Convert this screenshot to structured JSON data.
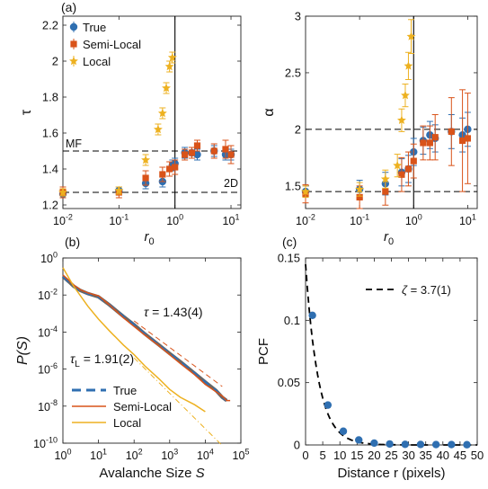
{
  "colors": {
    "true": "#2f6fb1",
    "semi": "#d95319",
    "local": "#edb120",
    "ref_line": "#000000"
  },
  "chart_data": [
    {
      "panel": "(a)",
      "type": "scatter",
      "xscale": "log",
      "xlim": [
        0.01,
        15
      ],
      "ylim": [
        1.18,
        2.25
      ],
      "xlabel": "r",
      "xlabel_sub": "0",
      "ylabel": "τ",
      "xticks": [
        0.01,
        0.1,
        1,
        10
      ],
      "xtick_labels": [
        [
          "10",
          "-2"
        ],
        [
          "10",
          "-1"
        ],
        [
          "10",
          "0"
        ],
        [
          "10",
          "1"
        ]
      ],
      "yticks": [
        1.2,
        1.4,
        1.6,
        1.8,
        2.0,
        2.2
      ],
      "ytick_labels": [
        "1.2",
        "1.4",
        "1.6",
        "1.8",
        "2",
        "2.2"
      ],
      "vline": 1,
      "hlines": [
        {
          "y": 1.5,
          "label": "MF"
        },
        {
          "y": 1.27,
          "label": "2D"
        }
      ],
      "legend": [
        "True",
        "Semi-Local",
        "Local"
      ],
      "series": [
        {
          "name": "True",
          "marker": "circle",
          "x": [
            0.01,
            0.1,
            0.3,
            0.6,
            0.9,
            1.0,
            1.5,
            2.0,
            2.5,
            5,
            8,
            10
          ],
          "y": [
            1.26,
            1.28,
            1.32,
            1.33,
            1.42,
            1.43,
            1.49,
            1.49,
            1.48,
            1.5,
            1.48,
            1.48
          ],
          "err": [
            0.02,
            0.02,
            0.03,
            0.03,
            0.03,
            0.03,
            0.03,
            0.03,
            0.03,
            0.03,
            0.03,
            0.03
          ]
        },
        {
          "name": "Semi-Local",
          "marker": "square",
          "x": [
            0.01,
            0.1,
            0.3,
            0.6,
            0.8,
            1.0,
            1.5,
            2.0,
            2.5,
            5,
            8,
            10
          ],
          "y": [
            1.27,
            1.27,
            1.35,
            1.37,
            1.4,
            1.41,
            1.48,
            1.49,
            1.53,
            1.5,
            1.51,
            1.48
          ],
          "err": [
            0.03,
            0.03,
            0.04,
            0.04,
            0.04,
            0.04,
            0.03,
            0.03,
            0.03,
            0.04,
            0.05,
            0.05
          ]
        },
        {
          "name": "Local",
          "marker": "star",
          "x": [
            0.01,
            0.1,
            0.3,
            0.5,
            0.6,
            0.7,
            0.8,
            0.9
          ],
          "y": [
            1.27,
            1.28,
            1.45,
            1.62,
            1.71,
            1.85,
            1.97,
            2.02
          ],
          "err": [
            0.02,
            0.02,
            0.03,
            0.03,
            0.03,
            0.03,
            0.03,
            0.03
          ]
        }
      ]
    },
    {
      "panel": "",
      "type": "scatter",
      "xscale": "log",
      "xlim": [
        0.01,
        15
      ],
      "ylim": [
        1.3,
        3.0
      ],
      "xlabel": "r",
      "xlabel_sub": "0",
      "ylabel": "α",
      "xticks": [
        0.01,
        0.1,
        1,
        10
      ],
      "xtick_labels": [
        [
          "10",
          "-2"
        ],
        [
          "10",
          "-1"
        ],
        [
          "10",
          "0"
        ],
        [
          "10",
          "1"
        ]
      ],
      "yticks": [
        1.5,
        2.0,
        2.5,
        3.0
      ],
      "ytick_labels": [
        "1.5",
        "2",
        "2.5",
        "3"
      ],
      "vline": 1,
      "hlines": [
        {
          "y": 2.0,
          "label": ""
        },
        {
          "y": 1.45,
          "label": ""
        }
      ],
      "series": [
        {
          "name": "True",
          "marker": "circle",
          "x": [
            0.01,
            0.1,
            0.3,
            0.6,
            0.8,
            1.0,
            1.5,
            2.0,
            2.5,
            5,
            8,
            10
          ],
          "y": [
            1.45,
            1.47,
            1.52,
            1.62,
            1.65,
            1.8,
            1.9,
            1.95,
            1.92,
            1.98,
            1.95,
            2.0
          ],
          "err": [
            0.05,
            0.08,
            0.1,
            0.12,
            0.12,
            0.12,
            0.12,
            0.12,
            0.12,
            0.15,
            0.15,
            0.15
          ]
        },
        {
          "name": "Semi-Local",
          "marker": "square",
          "x": [
            0.01,
            0.1,
            0.3,
            0.6,
            0.8,
            1.0,
            1.5,
            2.0,
            2.5,
            5,
            8,
            10
          ],
          "y": [
            1.43,
            1.4,
            1.45,
            1.6,
            1.65,
            1.72,
            1.88,
            1.88,
            1.93,
            1.98,
            1.9,
            1.92
          ],
          "err": [
            0.08,
            0.1,
            0.12,
            0.15,
            0.15,
            0.15,
            0.15,
            0.15,
            0.2,
            0.3,
            0.45,
            0.4
          ]
        },
        {
          "name": "Local",
          "marker": "star",
          "x": [
            0.01,
            0.1,
            0.3,
            0.5,
            0.6,
            0.7,
            0.8,
            0.9
          ],
          "y": [
            1.45,
            1.47,
            1.56,
            1.68,
            2.08,
            2.3,
            2.56,
            2.82
          ],
          "err": [
            0.05,
            0.06,
            0.08,
            0.1,
            0.1,
            0.1,
            0.12,
            0.15
          ]
        }
      ]
    },
    {
      "panel": "(b)",
      "type": "line",
      "xscale": "log",
      "yscale": "log",
      "xlim": [
        1,
        100000
      ],
      "ylim": [
        1e-10,
        1
      ],
      "xlabel": "Avalanche Size",
      "xlabel_var": "S",
      "ylabel": "P(S)",
      "xticks": [
        1,
        10,
        100,
        1000,
        10000,
        100000
      ],
      "xtick_labels": [
        [
          "10",
          "0"
        ],
        [
          "10",
          "1"
        ],
        [
          "10",
          "2"
        ],
        [
          "10",
          "3"
        ],
        [
          "10",
          "4"
        ],
        [
          "10",
          "5"
        ]
      ],
      "yticks": [
        1,
        0.01,
        0.0001,
        1e-06,
        1e-08,
        1e-10
      ],
      "ytick_labels": [
        [
          "10",
          "0"
        ],
        [
          "10",
          "-2"
        ],
        [
          "10",
          "-4"
        ],
        [
          "10",
          "-6"
        ],
        [
          "10",
          "-8"
        ],
        [
          "10",
          "-10"
        ]
      ],
      "annotations": [
        {
          "text": "τ = 1.43(4)",
          "symbol": "τ",
          "value": " = 1.43(4)"
        },
        {
          "text": "τL = 1.91(2)",
          "symbol": "τ",
          "sub": "L",
          "value": " = 1.91(2)"
        }
      ],
      "legend": [
        "True",
        "Semi-Local",
        "Local"
      ],
      "series": [
        {
          "name": "True",
          "style": "dashed",
          "x": [
            1,
            1.5,
            2,
            3,
            5,
            10,
            20,
            50,
            100,
            200,
            500,
            1000,
            2000,
            5000,
            10000,
            20000,
            30000,
            40000
          ],
          "y": [
            0.1,
            0.05,
            0.03,
            0.018,
            0.012,
            0.008,
            0.003,
            0.0007,
            0.00025,
            8e-05,
            2e-05,
            7e-06,
            2.5e-06,
            6e-07,
            2e-07,
            7e-08,
            3e-08,
            2e-08
          ]
        },
        {
          "name": "Semi-Local",
          "style": "solid",
          "x": [
            1,
            1.5,
            2,
            3,
            5,
            10,
            20,
            50,
            100,
            200,
            500,
            1000,
            2000,
            5000,
            10000,
            20000,
            30000,
            40000,
            50000
          ],
          "y": [
            0.12,
            0.06,
            0.035,
            0.02,
            0.013,
            0.009,
            0.003,
            0.0006,
            0.0002,
            7e-05,
            1.8e-05,
            6e-06,
            2e-06,
            5e-07,
            1.5e-07,
            6e-08,
            3.5e-08,
            2e-08,
            2e-08
          ]
        },
        {
          "name": "Local",
          "style": "solid",
          "x": [
            1,
            2,
            5,
            10,
            20,
            50,
            100,
            200,
            500,
            1000,
            2000,
            5000,
            10000
          ],
          "y": [
            0.3,
            0.03,
            0.0025,
            0.0005,
            0.00012,
            2e-05,
            6e-06,
            1.5e-06,
            3e-07,
            8e-08,
            3e-08,
            1.2e-08,
            5e-09
          ]
        }
      ],
      "fit_lines": [
        {
          "color": "semi",
          "slope": -1.43,
          "x": [
            100,
            30000
          ],
          "y0": 0.0004
        },
        {
          "color": "local",
          "slope": -1.91,
          "x": [
            100,
            30000
          ],
          "y0": 4e-06
        }
      ]
    },
    {
      "panel": "(c)",
      "type": "scatter",
      "xlim": [
        0,
        50
      ],
      "ylim": [
        0,
        0.15
      ],
      "xlabel": "Distance r (pixels)",
      "ylabel": "PCF",
      "xticks": [
        0,
        5,
        10,
        15,
        20,
        25,
        30,
        35,
        40,
        45,
        50
      ],
      "xtick_labels": [
        "0",
        "5",
        "10",
        "15",
        "20",
        "25",
        "30",
        "35",
        "40",
        "45",
        "50"
      ],
      "yticks": [
        0,
        0.05,
        0.1,
        0.15
      ],
      "ytick_labels": [
        "0",
        "0.05",
        "0.1",
        "0.15"
      ],
      "legend": [
        "ζ = 3.7(1)"
      ],
      "fit": {
        "type": "exponential",
        "amplitude": 0.145,
        "zeta": 3.7
      },
      "series": [
        {
          "name": "PCF",
          "marker": "circle",
          "x": [
            2,
            6.5,
            11,
            15.5,
            20,
            24.5,
            29,
            33.5,
            38,
            42.5,
            47
          ],
          "y": [
            0.104,
            0.032,
            0.011,
            0.004,
            0.0015,
            0.0008,
            0.0005,
            0.0004,
            0.0003,
            0.0003,
            0.0002
          ]
        }
      ]
    }
  ]
}
